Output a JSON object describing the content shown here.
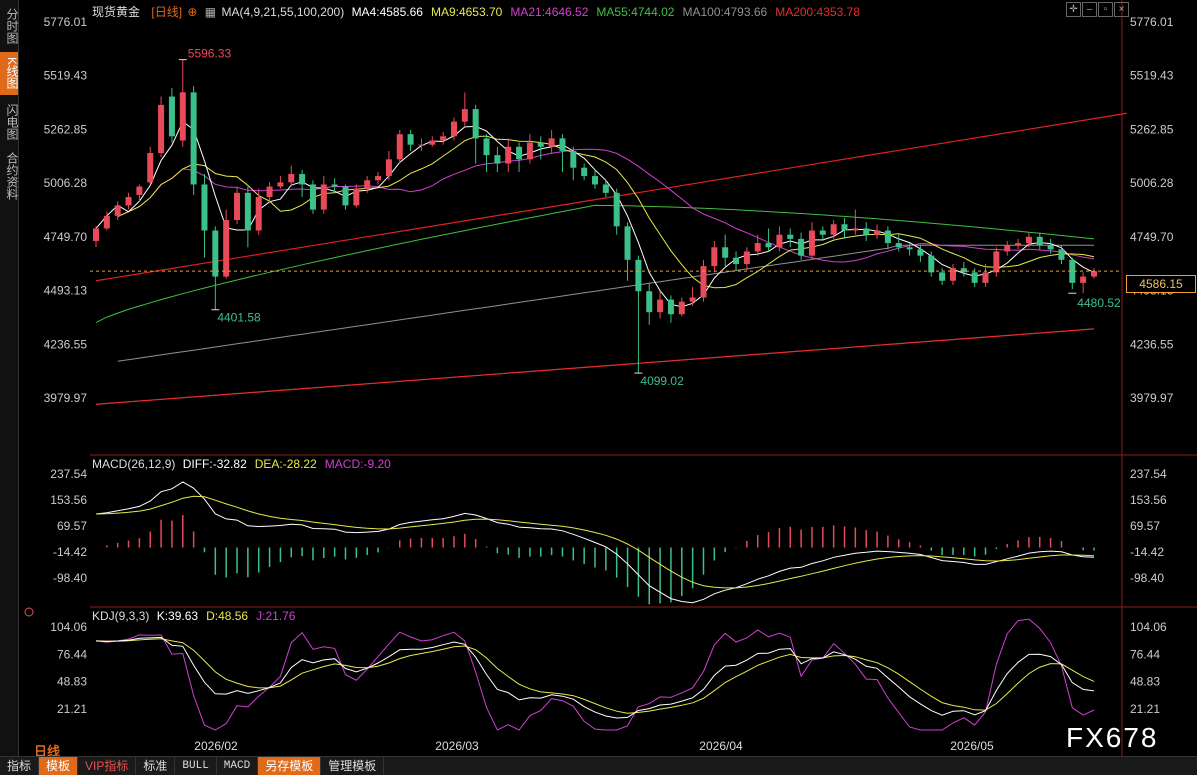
{
  "sidebar": {
    "tabs": [
      "分时图",
      "K线图",
      "闪电图",
      "合约资料"
    ],
    "active_index": 1
  },
  "header": {
    "instrument": "现货黄金",
    "period": "[日线]",
    "ma_label": "MA(4,9,21,55,100,200)",
    "ma_values": [
      {
        "text": "MA4:4585.66",
        "color": "#ffffff"
      },
      {
        "text": "MA9:4653.70",
        "color": "#e8e84a"
      },
      {
        "text": "MA21:4646.52",
        "color": "#d040d0"
      },
      {
        "text": "MA55:4744.02",
        "color": "#40c040"
      },
      {
        "text": "MA100:4793.66",
        "color": "#909090"
      },
      {
        "text": "MA200:4353.78",
        "color": "#e03030"
      }
    ]
  },
  "macd_header": {
    "label": "MACD(26,12,9)",
    "values": [
      {
        "text": "DIFF:-32.82",
        "color": "#ffffff"
      },
      {
        "text": "DEA:-28.22",
        "color": "#e8e84a"
      },
      {
        "text": "MACD:-9.20",
        "color": "#d040d0"
      }
    ]
  },
  "kdj_header": {
    "label": "KDJ(9,3,3)",
    "values": [
      {
        "text": "K:39.63",
        "color": "#ffffff"
      },
      {
        "text": "D:48.56",
        "color": "#e8e84a"
      },
      {
        "text": "J:21.76",
        "color": "#d040d0"
      }
    ]
  },
  "colors": {
    "up": "#e84a5a",
    "down": "#3cc08a",
    "ma4": "#ffffff",
    "ma9": "#e8e84a",
    "ma21": "#d040d0",
    "ma55": "#40c040",
    "ma100": "#909090",
    "ma200": "#e03030",
    "trend": "#e02020",
    "accent": "#e06a1a"
  },
  "current_price": "4586.15",
  "period_label": "日线",
  "watermark": "FX678",
  "bottom_tabs": [
    {
      "label": "指标",
      "style": ""
    },
    {
      "label": "模板",
      "style": "hl"
    },
    {
      "label": "VIP指标",
      "style": "vip"
    },
    {
      "label": "标准",
      "style": ""
    },
    {
      "label": "BULL",
      "style": "mono"
    },
    {
      "label": "MACD",
      "style": "mono"
    },
    {
      "label": "另存模板",
      "style": "hl"
    },
    {
      "label": "管理模板",
      "style": ""
    }
  ],
  "chart_data": {
    "type": "candlestick",
    "price_axis": {
      "ylim": [
        3979.97,
        5776.01
      ],
      "ticks": [
        "5776.01",
        "5519.43",
        "5262.85",
        "5006.28",
        "4749.70",
        "4493.13",
        "4236.55",
        "3979.97"
      ]
    },
    "macd_axis": {
      "ylim": [
        -98.4,
        237.54
      ],
      "ticks": [
        "237.54",
        "153.56",
        "69.57",
        "-14.42",
        "-98.40"
      ]
    },
    "kdj_axis": {
      "ylim": [
        21.21,
        104.06
      ],
      "ticks": [
        "104.06",
        "76.44",
        "48.83",
        "21.21"
      ]
    },
    "x_labels": [
      "2026/02",
      "2026/03",
      "2026/04",
      "2026/05"
    ],
    "annotations": [
      {
        "text": "5596.33",
        "kind": "high"
      },
      {
        "text": "4401.58",
        "kind": "low"
      },
      {
        "text": "4099.02",
        "kind": "low"
      },
      {
        "text": "4480.52",
        "kind": "low"
      }
    ],
    "candles": [
      [
        4730,
        4790,
        4700,
        4800
      ],
      [
        4790,
        4850,
        4780,
        4870
      ],
      [
        4850,
        4900,
        4830,
        4920
      ],
      [
        4900,
        4940,
        4880,
        4960
      ],
      [
        4950,
        4990,
        4920,
        5000
      ],
      [
        5010,
        5150,
        5000,
        5180
      ],
      [
        5150,
        5380,
        5130,
        5420
      ],
      [
        5420,
        5230,
        5200,
        5460
      ],
      [
        5210,
        5440,
        5180,
        5596.33
      ],
      [
        5440,
        5000,
        4950,
        5470
      ],
      [
        5000,
        4780,
        4650,
        5050
      ],
      [
        4780,
        4560,
        4401.58,
        4800
      ],
      [
        4560,
        4830,
        4550,
        4880
      ],
      [
        4830,
        4960,
        4810,
        4990
      ],
      [
        4960,
        4780,
        4700,
        4990
      ],
      [
        4780,
        4940,
        4760,
        4980
      ],
      [
        4940,
        4990,
        4910,
        5010
      ],
      [
        4990,
        5010,
        4980,
        5040
      ],
      [
        5010,
        5050,
        4990,
        5090
      ],
      [
        5050,
        5000,
        4940,
        5070
      ],
      [
        5000,
        4880,
        4860,
        5020
      ],
      [
        4880,
        5000,
        4860,
        5040
      ],
      [
        5000,
        4990,
        4960,
        5030
      ],
      [
        4990,
        4900,
        4880,
        5000
      ],
      [
        4900,
        4980,
        4890,
        5000
      ],
      [
        4980,
        5020,
        4960,
        5040
      ],
      [
        5020,
        5040,
        5000,
        5060
      ],
      [
        5040,
        5120,
        5020,
        5160
      ],
      [
        5120,
        5240,
        5100,
        5260
      ],
      [
        5240,
        5190,
        5160,
        5260
      ],
      [
        5190,
        5190,
        5160,
        5220
      ],
      [
        5190,
        5210,
        5180,
        5230
      ],
      [
        5210,
        5230,
        5190,
        5250
      ],
      [
        5230,
        5300,
        5210,
        5320
      ],
      [
        5300,
        5360,
        5280,
        5440
      ],
      [
        5360,
        5220,
        5100,
        5380
      ],
      [
        5220,
        5140,
        5060,
        5240
      ],
      [
        5140,
        5100,
        5060,
        5180
      ],
      [
        5100,
        5180,
        5060,
        5220
      ],
      [
        5180,
        5120,
        5060,
        5200
      ],
      [
        5120,
        5200,
        5100,
        5240
      ],
      [
        5200,
        5180,
        5120,
        5230
      ],
      [
        5180,
        5220,
        5150,
        5260
      ],
      [
        5220,
        5160,
        5060,
        5240
      ],
      [
        5160,
        5080,
        5020,
        5180
      ],
      [
        5080,
        5040,
        5020,
        5100
      ],
      [
        5040,
        5000,
        4980,
        5070
      ],
      [
        5000,
        4960,
        4940,
        5020
      ],
      [
        4960,
        4800,
        4760,
        4980
      ],
      [
        4800,
        4640,
        4540,
        4820
      ],
      [
        4640,
        4490,
        4099.02,
        4660
      ],
      [
        4490,
        4390,
        4330,
        4530
      ],
      [
        4390,
        4450,
        4360,
        4490
      ],
      [
        4450,
        4380,
        4340,
        4470
      ],
      [
        4380,
        4440,
        4370,
        4460
      ],
      [
        4440,
        4460,
        4420,
        4510
      ],
      [
        4460,
        4610,
        4440,
        4640
      ],
      [
        4610,
        4700,
        4580,
        4730
      ],
      [
        4700,
        4650,
        4610,
        4760
      ],
      [
        4650,
        4620,
        4590,
        4680
      ],
      [
        4620,
        4680,
        4590,
        4700
      ],
      [
        4680,
        4720,
        4660,
        4760
      ],
      [
        4720,
        4700,
        4680,
        4790
      ],
      [
        4700,
        4760,
        4680,
        4800
      ],
      [
        4760,
        4740,
        4700,
        4790
      ],
      [
        4740,
        4660,
        4640,
        4770
      ],
      [
        4660,
        4780,
        4640,
        4820
      ],
      [
        4780,
        4760,
        4730,
        4800
      ],
      [
        4760,
        4810,
        4740,
        4830
      ],
      [
        4810,
        4780,
        4740,
        4840
      ],
      [
        4780,
        4790,
        4760,
        4880
      ],
      [
        4790,
        4760,
        4730,
        4820
      ],
      [
        4760,
        4780,
        4740,
        4810
      ],
      [
        4780,
        4720,
        4690,
        4800
      ],
      [
        4720,
        4700,
        4680,
        4760
      ],
      [
        4700,
        4690,
        4660,
        4720
      ],
      [
        4690,
        4660,
        4630,
        4710
      ],
      [
        4660,
        4580,
        4560,
        4680
      ],
      [
        4580,
        4540,
        4520,
        4600
      ],
      [
        4540,
        4600,
        4520,
        4620
      ],
      [
        4600,
        4580,
        4560,
        4630
      ],
      [
        4580,
        4530,
        4510,
        4600
      ],
      [
        4530,
        4580,
        4510,
        4620
      ],
      [
        4580,
        4680,
        4560,
        4700
      ],
      [
        4680,
        4710,
        4660,
        4730
      ],
      [
        4710,
        4720,
        4690,
        4740
      ],
      [
        4720,
        4750,
        4700,
        4770
      ],
      [
        4750,
        4710,
        4690,
        4770
      ],
      [
        4710,
        4690,
        4670,
        4740
      ],
      [
        4690,
        4640,
        4620,
        4710
      ],
      [
        4640,
        4530,
        4500,
        4650
      ],
      [
        4530,
        4560,
        4480.52,
        4580
      ],
      [
        4560,
        4586.15,
        4550,
        4600
      ]
    ]
  }
}
